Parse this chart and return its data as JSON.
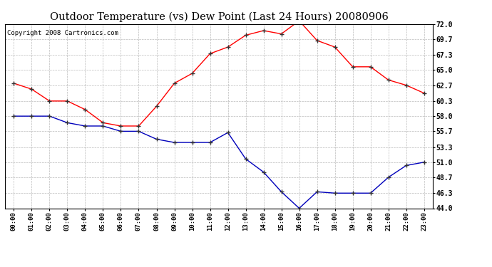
{
  "title": "Outdoor Temperature (vs) Dew Point (Last 24 Hours) 20080906",
  "copyright": "Copyright 2008 Cartronics.com",
  "x_labels": [
    "00:00",
    "01:00",
    "02:00",
    "03:00",
    "04:00",
    "05:00",
    "06:00",
    "07:00",
    "08:00",
    "09:00",
    "10:00",
    "11:00",
    "12:00",
    "13:00",
    "14:00",
    "15:00",
    "16:00",
    "17:00",
    "18:00",
    "19:00",
    "20:00",
    "21:00",
    "22:00",
    "23:00"
  ],
  "temp_data": [
    63.0,
    62.1,
    60.3,
    60.3,
    59.0,
    57.0,
    56.5,
    56.5,
    59.5,
    63.0,
    64.5,
    67.5,
    68.5,
    70.3,
    71.0,
    70.5,
    72.5,
    69.5,
    68.5,
    65.5,
    65.5,
    63.5,
    62.7,
    61.5
  ],
  "dew_data": [
    58.0,
    58.0,
    58.0,
    57.0,
    56.5,
    56.5,
    55.7,
    55.7,
    54.5,
    54.0,
    54.0,
    54.0,
    55.5,
    51.5,
    49.5,
    46.5,
    44.0,
    46.5,
    46.3,
    46.3,
    46.3,
    48.7,
    50.5,
    51.0
  ],
  "temp_color": "#ff0000",
  "dew_color": "#0000bb",
  "bg_color": "#ffffff",
  "plot_bg": "#ffffff",
  "grid_color": "#aaaaaa",
  "y_min": 44.0,
  "y_max": 72.0,
  "y_ticks": [
    44.0,
    46.3,
    48.7,
    51.0,
    53.3,
    55.7,
    58.0,
    60.3,
    62.7,
    65.0,
    67.3,
    69.7,
    72.0
  ],
  "title_fontsize": 10.5,
  "copyright_fontsize": 6.5
}
